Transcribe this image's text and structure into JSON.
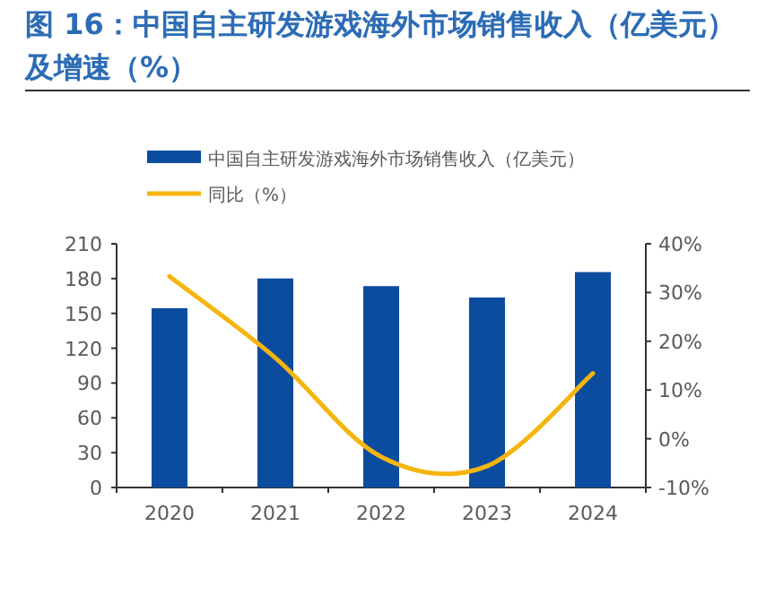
{
  "chart_data": {
    "type": "bar",
    "title": "图 16：中国自主研发游戏海外市场销售收入（亿美元）及增速（%）",
    "categories": [
      "2020",
      "2021",
      "2022",
      "2023",
      "2024"
    ],
    "series": [
      {
        "name": "中国自主研发游戏海外市场销售收入（亿美元）",
        "color": "#0c4c9e",
        "values": [
          154.5,
          180.1,
          173.5,
          163.7,
          185.6
        ]
      },
      {
        "name": "同比（%）",
        "type": "line",
        "axis": "y2",
        "color": "#f5b50f",
        "values": [
          33.3,
          16.6,
          -3.7,
          -5.6,
          13.4
        ]
      }
    ],
    "ylim": [
      0,
      210
    ],
    "yticks": [
      0,
      30,
      60,
      90,
      120,
      150,
      180,
      210
    ],
    "y2lim": [
      -10,
      40
    ],
    "y2ticks": [
      {
        "value": -10,
        "label": "-10%"
      },
      {
        "value": 0,
        "label": "0%"
      },
      {
        "value": 10,
        "label": "10%"
      },
      {
        "value": 20,
        "label": "20%"
      },
      {
        "value": 30,
        "label": "30%"
      },
      {
        "value": 40,
        "label": "40%"
      }
    ],
    "legend": "top",
    "grid": false
  }
}
